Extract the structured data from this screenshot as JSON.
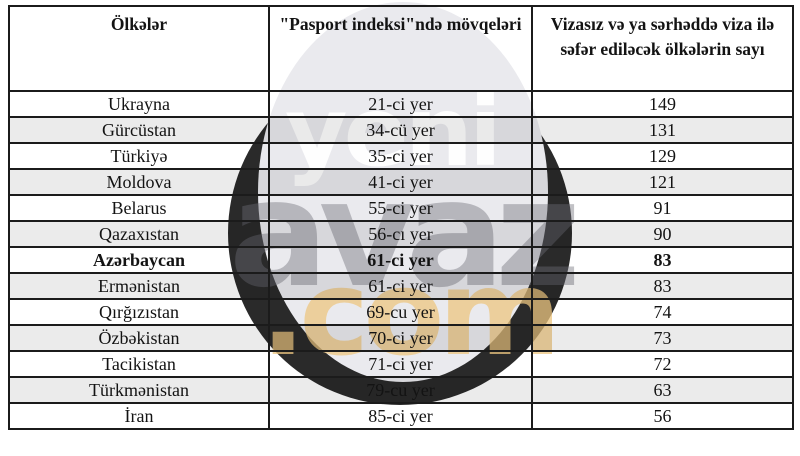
{
  "watermark": {
    "line1": "yeni",
    "line2": "avaz",
    "line3": ".com",
    "circle_color": "rgba(24,24,24,0.92)",
    "dome_color": "#eaeaee",
    "line1_color": "rgba(255,255,255,0.92)",
    "line2_color": "rgba(110,110,118,0.42)",
    "line3_color": "rgba(236,197,128,0.75)"
  },
  "table": {
    "columns": [
      {
        "label": "Ölkələr"
      },
      {
        "label": "\"Pasport indeksi\"ndə mövqeləri"
      },
      {
        "label": "Vizasız və ya sərhəddə viza ilə səfər ediləcək ölkələrin sayı"
      }
    ],
    "rows": [
      {
        "country": "Ukrayna",
        "position": "21-ci yer",
        "count": "149",
        "highlight": false
      },
      {
        "country": "Gürcüstan",
        "position": "34-cü yer",
        "count": "131",
        "highlight": false
      },
      {
        "country": "Türkiyə",
        "position": "35-ci yer",
        "count": "129",
        "highlight": false
      },
      {
        "country": "Moldova",
        "position": "41-ci yer",
        "count": "121",
        "highlight": false
      },
      {
        "country": "Belarus",
        "position": "55-ci yer",
        "count": "91",
        "highlight": false
      },
      {
        "country": "Qazaxıstan",
        "position": "56-cı yer",
        "count": "90",
        "highlight": false
      },
      {
        "country": "Azərbaycan",
        "position": "61-ci yer",
        "count": "83",
        "highlight": true
      },
      {
        "country": "Ermənistan",
        "position": "61-ci yer",
        "count": "83",
        "highlight": false
      },
      {
        "country": "Qırğızıstan",
        "position": "69-cu yer",
        "count": "74",
        "highlight": false
      },
      {
        "country": "Özbəkistan",
        "position": "70-ci yer",
        "count": "73",
        "highlight": false
      },
      {
        "country": "Tacikistan",
        "position": "71-ci yer",
        "count": "72",
        "highlight": false
      },
      {
        "country": "Türkmənistan",
        "position": "79-cu yer",
        "count": "63",
        "highlight": false
      },
      {
        "country": "İran",
        "position": "85-ci yer",
        "count": "56",
        "highlight": false
      }
    ]
  }
}
